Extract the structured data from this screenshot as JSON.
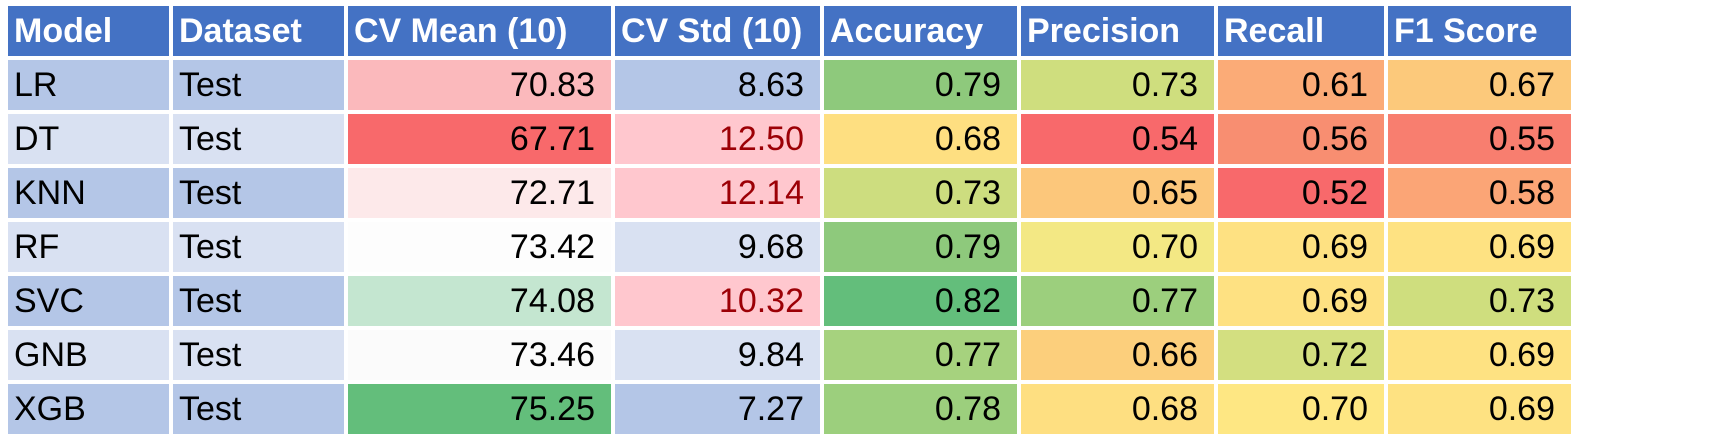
{
  "chart_data": {
    "type": "table",
    "columns": [
      "Model",
      "Dataset",
      "CV Mean (10)",
      "CV Std (10)",
      "Accuracy",
      "Precision",
      "Recall",
      "F1 Score"
    ],
    "rows": [
      {
        "cells": [
          "LR",
          "Test",
          "70.83",
          "8.63",
          "0.79",
          "0.73",
          "0.61",
          "0.67"
        ],
        "fill": [
          "#b4c6e7",
          "#b4c6e7",
          "#fbb9bc",
          "#b4c6e7",
          "#8ec97c",
          "#cfde7e",
          "#fbab77",
          "#fcc97b"
        ],
        "text": [
          "#000000",
          "#000000",
          "#000000",
          "#000000",
          "#000000",
          "#000000",
          "#000000",
          "#000000"
        ]
      },
      {
        "cells": [
          "DT",
          "Test",
          "67.71",
          "12.50",
          "0.68",
          "0.54",
          "0.56",
          "0.55"
        ],
        "fill": [
          "#d9e1f2",
          "#d9e1f2",
          "#f8696b",
          "#ffc7ce",
          "#fedf81",
          "#f8696b",
          "#f88e71",
          "#f87e6f"
        ],
        "text": [
          "#000000",
          "#000000",
          "#000000",
          "#9c0006",
          "#000000",
          "#000000",
          "#000000",
          "#000000"
        ]
      },
      {
        "cells": [
          "KNN",
          "Test",
          "72.71",
          "12.14",
          "0.73",
          "0.65",
          "0.52",
          "0.58"
        ],
        "fill": [
          "#b4c6e7",
          "#b4c6e7",
          "#fde9ea",
          "#ffc7ce",
          "#cddd7f",
          "#fcc77b",
          "#f8696b",
          "#fba576"
        ],
        "text": [
          "#000000",
          "#000000",
          "#000000",
          "#9c0006",
          "#000000",
          "#000000",
          "#000000",
          "#000000"
        ]
      },
      {
        "cells": [
          "RF",
          "Test",
          "73.42",
          "9.68",
          "0.79",
          "0.70",
          "0.69",
          "0.69"
        ],
        "fill": [
          "#d9e1f2",
          "#d9e1f2",
          "#fdfdfd",
          "#d9e1f2",
          "#8ec97c",
          "#f3e884",
          "#fee182",
          "#fee282"
        ],
        "text": [
          "#000000",
          "#000000",
          "#000000",
          "#000000",
          "#000000",
          "#000000",
          "#000000",
          "#000000"
        ]
      },
      {
        "cells": [
          "SVC",
          "Test",
          "74.08",
          "10.32",
          "0.82",
          "0.77",
          "0.69",
          "0.73"
        ],
        "fill": [
          "#b4c6e7",
          "#b4c6e7",
          "#c4e6d0",
          "#ffc7ce",
          "#63be7b",
          "#9ccf7d",
          "#fee182",
          "#cfde7e"
        ],
        "text": [
          "#000000",
          "#000000",
          "#000000",
          "#9c0006",
          "#000000",
          "#000000",
          "#000000",
          "#000000"
        ]
      },
      {
        "cells": [
          "GNB",
          "Test",
          "73.46",
          "9.84",
          "0.77",
          "0.66",
          "0.72",
          "0.69"
        ],
        "fill": [
          "#d9e1f2",
          "#d9e1f2",
          "#fbfbfb",
          "#d9e1f2",
          "#a6d27e",
          "#fccf7c",
          "#d3df80",
          "#fee282"
        ],
        "text": [
          "#000000",
          "#000000",
          "#000000",
          "#000000",
          "#000000",
          "#000000",
          "#000000",
          "#000000"
        ]
      },
      {
        "cells": [
          "XGB",
          "Test",
          "75.25",
          "7.27",
          "0.78",
          "0.68",
          "0.70",
          "0.69"
        ],
        "fill": [
          "#b4c6e7",
          "#b4c6e7",
          "#63be7b",
          "#b4c6e7",
          "#9ccf7d",
          "#fedf81",
          "#fee783",
          "#fee282"
        ],
        "text": [
          "#000000",
          "#000000",
          "#000000",
          "#000000",
          "#000000",
          "#000000",
          "#000000",
          "#000000"
        ]
      }
    ]
  }
}
